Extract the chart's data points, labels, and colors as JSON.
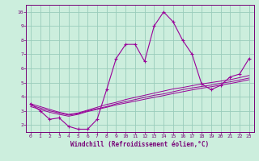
{
  "xlabel": "Windchill (Refroidissement éolien,°C)",
  "bg_color": "#cceedd",
  "line_color": "#990099",
  "grid_color": "#99ccbb",
  "axis_color": "#770077",
  "spine_color": "#770077",
  "x_data": [
    0,
    1,
    2,
    3,
    4,
    5,
    6,
    7,
    8,
    9,
    10,
    11,
    12,
    13,
    14,
    15,
    16,
    17,
    18,
    19,
    20,
    21,
    22,
    23
  ],
  "main_curve": [
    3.5,
    3.0,
    2.4,
    2.5,
    1.9,
    1.7,
    1.7,
    2.4,
    4.5,
    6.7,
    7.7,
    7.7,
    6.5,
    9.0,
    10.0,
    9.3,
    8.0,
    7.0,
    4.9,
    4.5,
    4.8,
    5.4,
    5.6,
    6.7
  ],
  "line1": [
    3.5,
    3.3,
    3.1,
    2.9,
    2.75,
    2.85,
    3.05,
    3.25,
    3.45,
    3.6,
    3.8,
    3.95,
    4.1,
    4.25,
    4.4,
    4.55,
    4.65,
    4.78,
    4.9,
    5.0,
    5.1,
    5.2,
    5.35,
    5.5
  ],
  "line2": [
    3.4,
    3.2,
    3.0,
    2.85,
    2.7,
    2.8,
    3.0,
    3.15,
    3.3,
    3.5,
    3.65,
    3.8,
    3.95,
    4.1,
    4.2,
    4.35,
    4.5,
    4.62,
    4.72,
    4.82,
    4.95,
    5.05,
    5.18,
    5.32
  ],
  "line3": [
    3.3,
    3.1,
    2.9,
    2.75,
    2.62,
    2.75,
    2.95,
    3.1,
    3.25,
    3.42,
    3.55,
    3.68,
    3.82,
    3.95,
    4.08,
    4.22,
    4.35,
    4.48,
    4.6,
    4.7,
    4.82,
    4.93,
    5.06,
    5.2
  ],
  "xlim": [
    -0.5,
    23.5
  ],
  "ylim": [
    1.5,
    10.5
  ],
  "yticks": [
    2,
    3,
    4,
    5,
    6,
    7,
    8,
    9,
    10
  ],
  "xticks": [
    0,
    1,
    2,
    3,
    4,
    5,
    6,
    7,
    8,
    9,
    10,
    11,
    12,
    13,
    14,
    15,
    16,
    17,
    18,
    19,
    20,
    21,
    22,
    23
  ]
}
